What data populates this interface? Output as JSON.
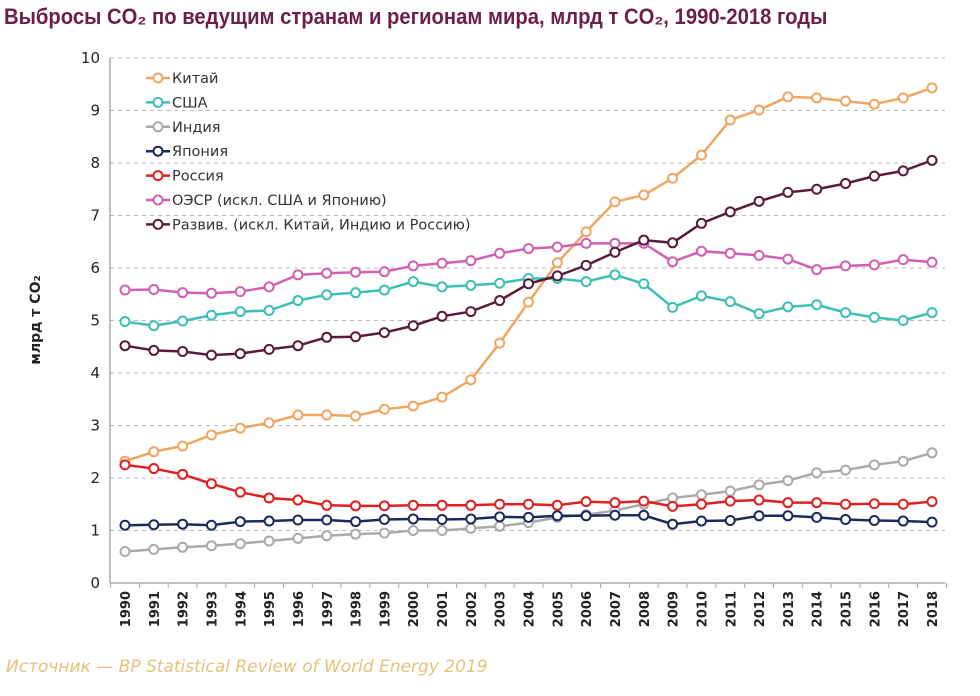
{
  "chart_data": {
    "type": "line",
    "title": "Выбросы CO₂ по ведущим странам и регионам мира, млрд т CO₂, 1990-2018 годы",
    "xlabel": "",
    "ylabel": "млрд т CO₂",
    "ylim": [
      0,
      10
    ],
    "yticks": [
      "0",
      "1",
      "2",
      "3",
      "4",
      "5",
      "6",
      "7",
      "8",
      "9",
      "10"
    ],
    "grid": "horizontal dashed",
    "legend_position": "top-left",
    "x": [
      "1990",
      "1991",
      "1992",
      "1993",
      "1994",
      "1995",
      "1996",
      "1997",
      "1998",
      "1999",
      "2000",
      "2001",
      "2002",
      "2003",
      "2004",
      "2005",
      "2006",
      "2007",
      "2008",
      "2009",
      "2010",
      "2011",
      "2012",
      "2013",
      "2014",
      "2015",
      "2016",
      "2017",
      "2018"
    ],
    "series": [
      {
        "name": "Китай",
        "color": "#f0a560",
        "values": [
          2.32,
          2.5,
          2.61,
          2.82,
          2.95,
          3.05,
          3.2,
          3.2,
          3.18,
          3.31,
          3.37,
          3.54,
          3.87,
          4.57,
          5.35,
          6.1,
          6.69,
          7.26,
          7.39,
          7.71,
          8.15,
          8.82,
          9.01,
          9.26,
          9.24,
          9.18,
          9.12,
          9.24,
          9.43
        ]
      },
      {
        "name": "США",
        "color": "#3dbfb6",
        "values": [
          4.98,
          4.9,
          4.99,
          5.1,
          5.17,
          5.19,
          5.38,
          5.49,
          5.53,
          5.58,
          5.74,
          5.64,
          5.67,
          5.71,
          5.8,
          5.8,
          5.74,
          5.87,
          5.7,
          5.25,
          5.47,
          5.36,
          5.13,
          5.26,
          5.3,
          5.15,
          5.06,
          5.0,
          5.15
        ]
      },
      {
        "name": "Индия",
        "color": "#aaaaaa",
        "values": [
          0.6,
          0.64,
          0.68,
          0.71,
          0.75,
          0.8,
          0.85,
          0.9,
          0.93,
          0.95,
          1.0,
          1.0,
          1.04,
          1.08,
          1.15,
          1.25,
          1.3,
          1.38,
          1.5,
          1.62,
          1.68,
          1.75,
          1.87,
          1.95,
          2.1,
          2.15,
          2.25,
          2.32,
          2.48
        ]
      },
      {
        "name": "Япония",
        "color": "#1b2a5a",
        "values": [
          1.1,
          1.11,
          1.12,
          1.1,
          1.17,
          1.18,
          1.2,
          1.2,
          1.17,
          1.21,
          1.22,
          1.21,
          1.22,
          1.26,
          1.25,
          1.28,
          1.28,
          1.29,
          1.29,
          1.12,
          1.18,
          1.19,
          1.28,
          1.28,
          1.25,
          1.21,
          1.19,
          1.18,
          1.16
        ]
      },
      {
        "name": "Россия",
        "color": "#e02020",
        "values": [
          2.25,
          2.18,
          2.07,
          1.89,
          1.73,
          1.62,
          1.58,
          1.48,
          1.47,
          1.47,
          1.48,
          1.48,
          1.48,
          1.5,
          1.5,
          1.48,
          1.55,
          1.53,
          1.56,
          1.46,
          1.5,
          1.56,
          1.58,
          1.53,
          1.53,
          1.5,
          1.51,
          1.5,
          1.55
        ]
      },
      {
        "name": "ОЭСР (искл. США и Японию)",
        "color": "#d060b0",
        "values": [
          5.58,
          5.59,
          5.53,
          5.52,
          5.55,
          5.64,
          5.87,
          5.9,
          5.92,
          5.93,
          6.04,
          6.09,
          6.14,
          6.28,
          6.37,
          6.4,
          6.47,
          6.47,
          6.47,
          6.12,
          6.32,
          6.28,
          6.24,
          6.17,
          5.97,
          6.04,
          6.06,
          6.16,
          6.11
        ]
      },
      {
        "name": "Развив. (искл. Китай, Индию и Россию)",
        "color": "#5a1a3a",
        "values": [
          4.52,
          4.43,
          4.41,
          4.34,
          4.37,
          4.45,
          4.52,
          4.68,
          4.69,
          4.77,
          4.9,
          5.08,
          5.17,
          5.38,
          5.7,
          5.85,
          6.05,
          6.3,
          6.53,
          6.48,
          6.85,
          7.07,
          7.27,
          7.44,
          7.5,
          7.61,
          7.75,
          7.85,
          8.05
        ]
      }
    ]
  },
  "source": "Источник — BP Statistical Review of World Energy 2019",
  "colors": {
    "title": "#6b1f4a",
    "source": "#e8c07a"
  }
}
